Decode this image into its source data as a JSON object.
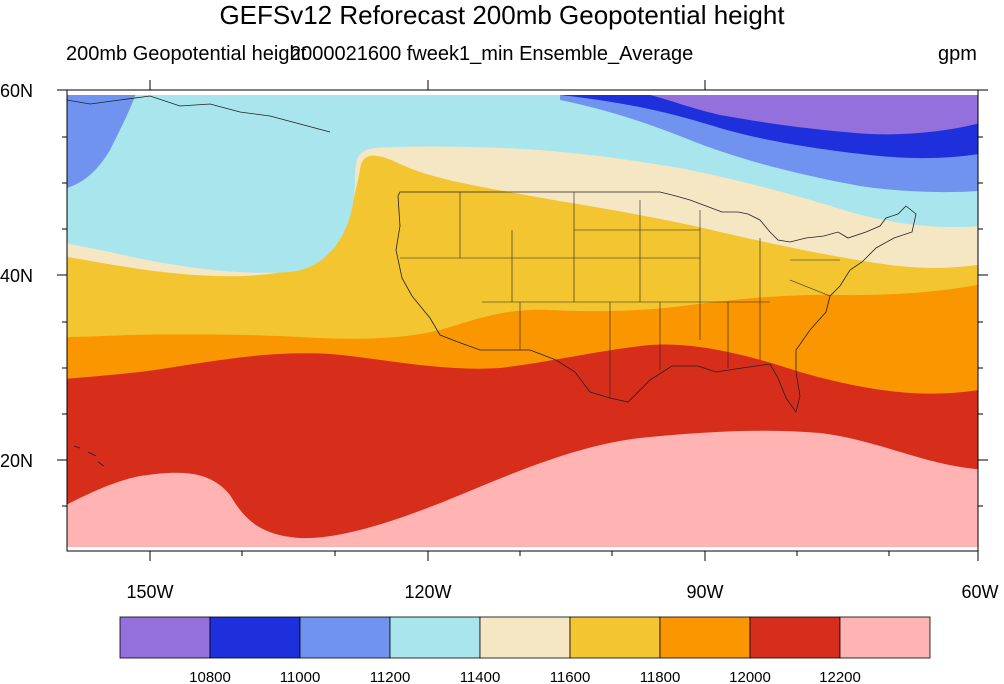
{
  "title": "GEFSv12 Reforecast 200mb Geopotential height",
  "subtitle_left": "200mb Geopotential height",
  "subtitle_center": "2000021600 fweek1_min Ensemble_Average",
  "subtitle_right": "gpm",
  "y_axis_labels": [
    "60N",
    "40N",
    "20N"
  ],
  "x_axis_labels": [
    "150W",
    "120W",
    "90W",
    "60W"
  ],
  "colorbar": {
    "colors": [
      "#9370db",
      "#1e2fdc",
      "#7093f0",
      "#a8e5ec",
      "#f5e6c4",
      "#f2c531",
      "#fa9600",
      "#d62e1a",
      "#ffb3b3"
    ],
    "labels": [
      "10800",
      "11000",
      "11200",
      "11400",
      "11600",
      "11800",
      "12000",
      "12200"
    ]
  },
  "map_extent": {
    "lon": [
      "160W",
      "60W"
    ],
    "lat": [
      "10N",
      "60N"
    ]
  }
}
